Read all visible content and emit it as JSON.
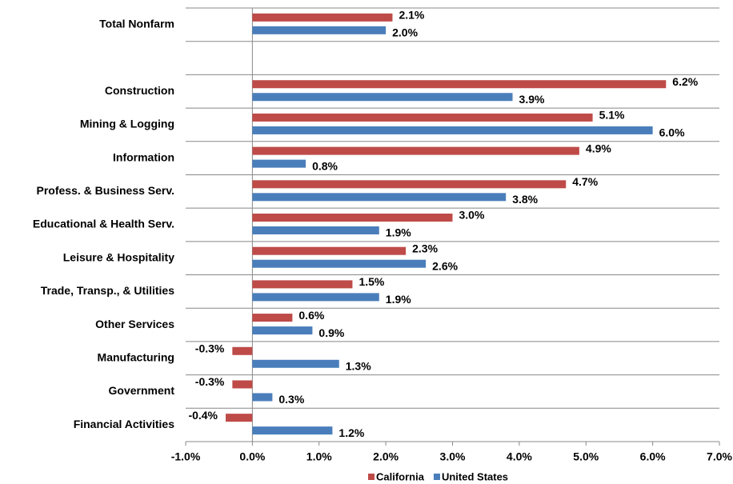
{
  "chart_data": {
    "type": "hbar",
    "categories": [
      "Total Nonfarm",
      null,
      "Construction",
      "Mining & Logging",
      "Information",
      "Profess. & Business Serv.",
      "Educational & Health Serv.",
      "Leisure & Hospitality",
      "Trade, Transp., & Utilities",
      "Other Services",
      "Manufacturing",
      "Government",
      "Financial Activities"
    ],
    "series": [
      {
        "name": "California",
        "color": "#be4b48",
        "values": [
          2.1,
          null,
          6.2,
          5.1,
          4.9,
          4.7,
          3.0,
          2.3,
          1.5,
          0.6,
          -0.3,
          -0.3,
          -0.4
        ],
        "value_labels": [
          "2.1%",
          null,
          "6.2%",
          "5.1%",
          "4.9%",
          "4.7%",
          "3.0%",
          "2.3%",
          "1.5%",
          "0.6%",
          "-0.3%",
          "-0.3%",
          "-0.4%"
        ]
      },
      {
        "name": "United States",
        "color": "#4a7ebb",
        "values": [
          2.0,
          null,
          3.9,
          6.0,
          0.8,
          3.8,
          1.9,
          2.6,
          1.9,
          0.9,
          1.3,
          0.3,
          1.2
        ],
        "value_labels": [
          "2.0%",
          null,
          "3.9%",
          "6.0%",
          "0.8%",
          "3.8%",
          "1.9%",
          "2.6%",
          "1.9%",
          "0.9%",
          "1.3%",
          "0.3%",
          "1.2%"
        ]
      }
    ],
    "xlim": [
      -1,
      7
    ],
    "xticks": [
      {
        "value": -1,
        "label": "-1.0%"
      },
      {
        "value": 0,
        "label": "0.0%"
      },
      {
        "value": 1,
        "label": "1.0%"
      },
      {
        "value": 2,
        "label": "2.0%"
      },
      {
        "value": 3,
        "label": "3.0%"
      },
      {
        "value": 4,
        "label": "4.0%"
      },
      {
        "value": 5,
        "label": "5.0%"
      },
      {
        "value": 6,
        "label": "6.0%"
      },
      {
        "value": 7,
        "label": "7.0%"
      }
    ],
    "legend": "bottom"
  }
}
